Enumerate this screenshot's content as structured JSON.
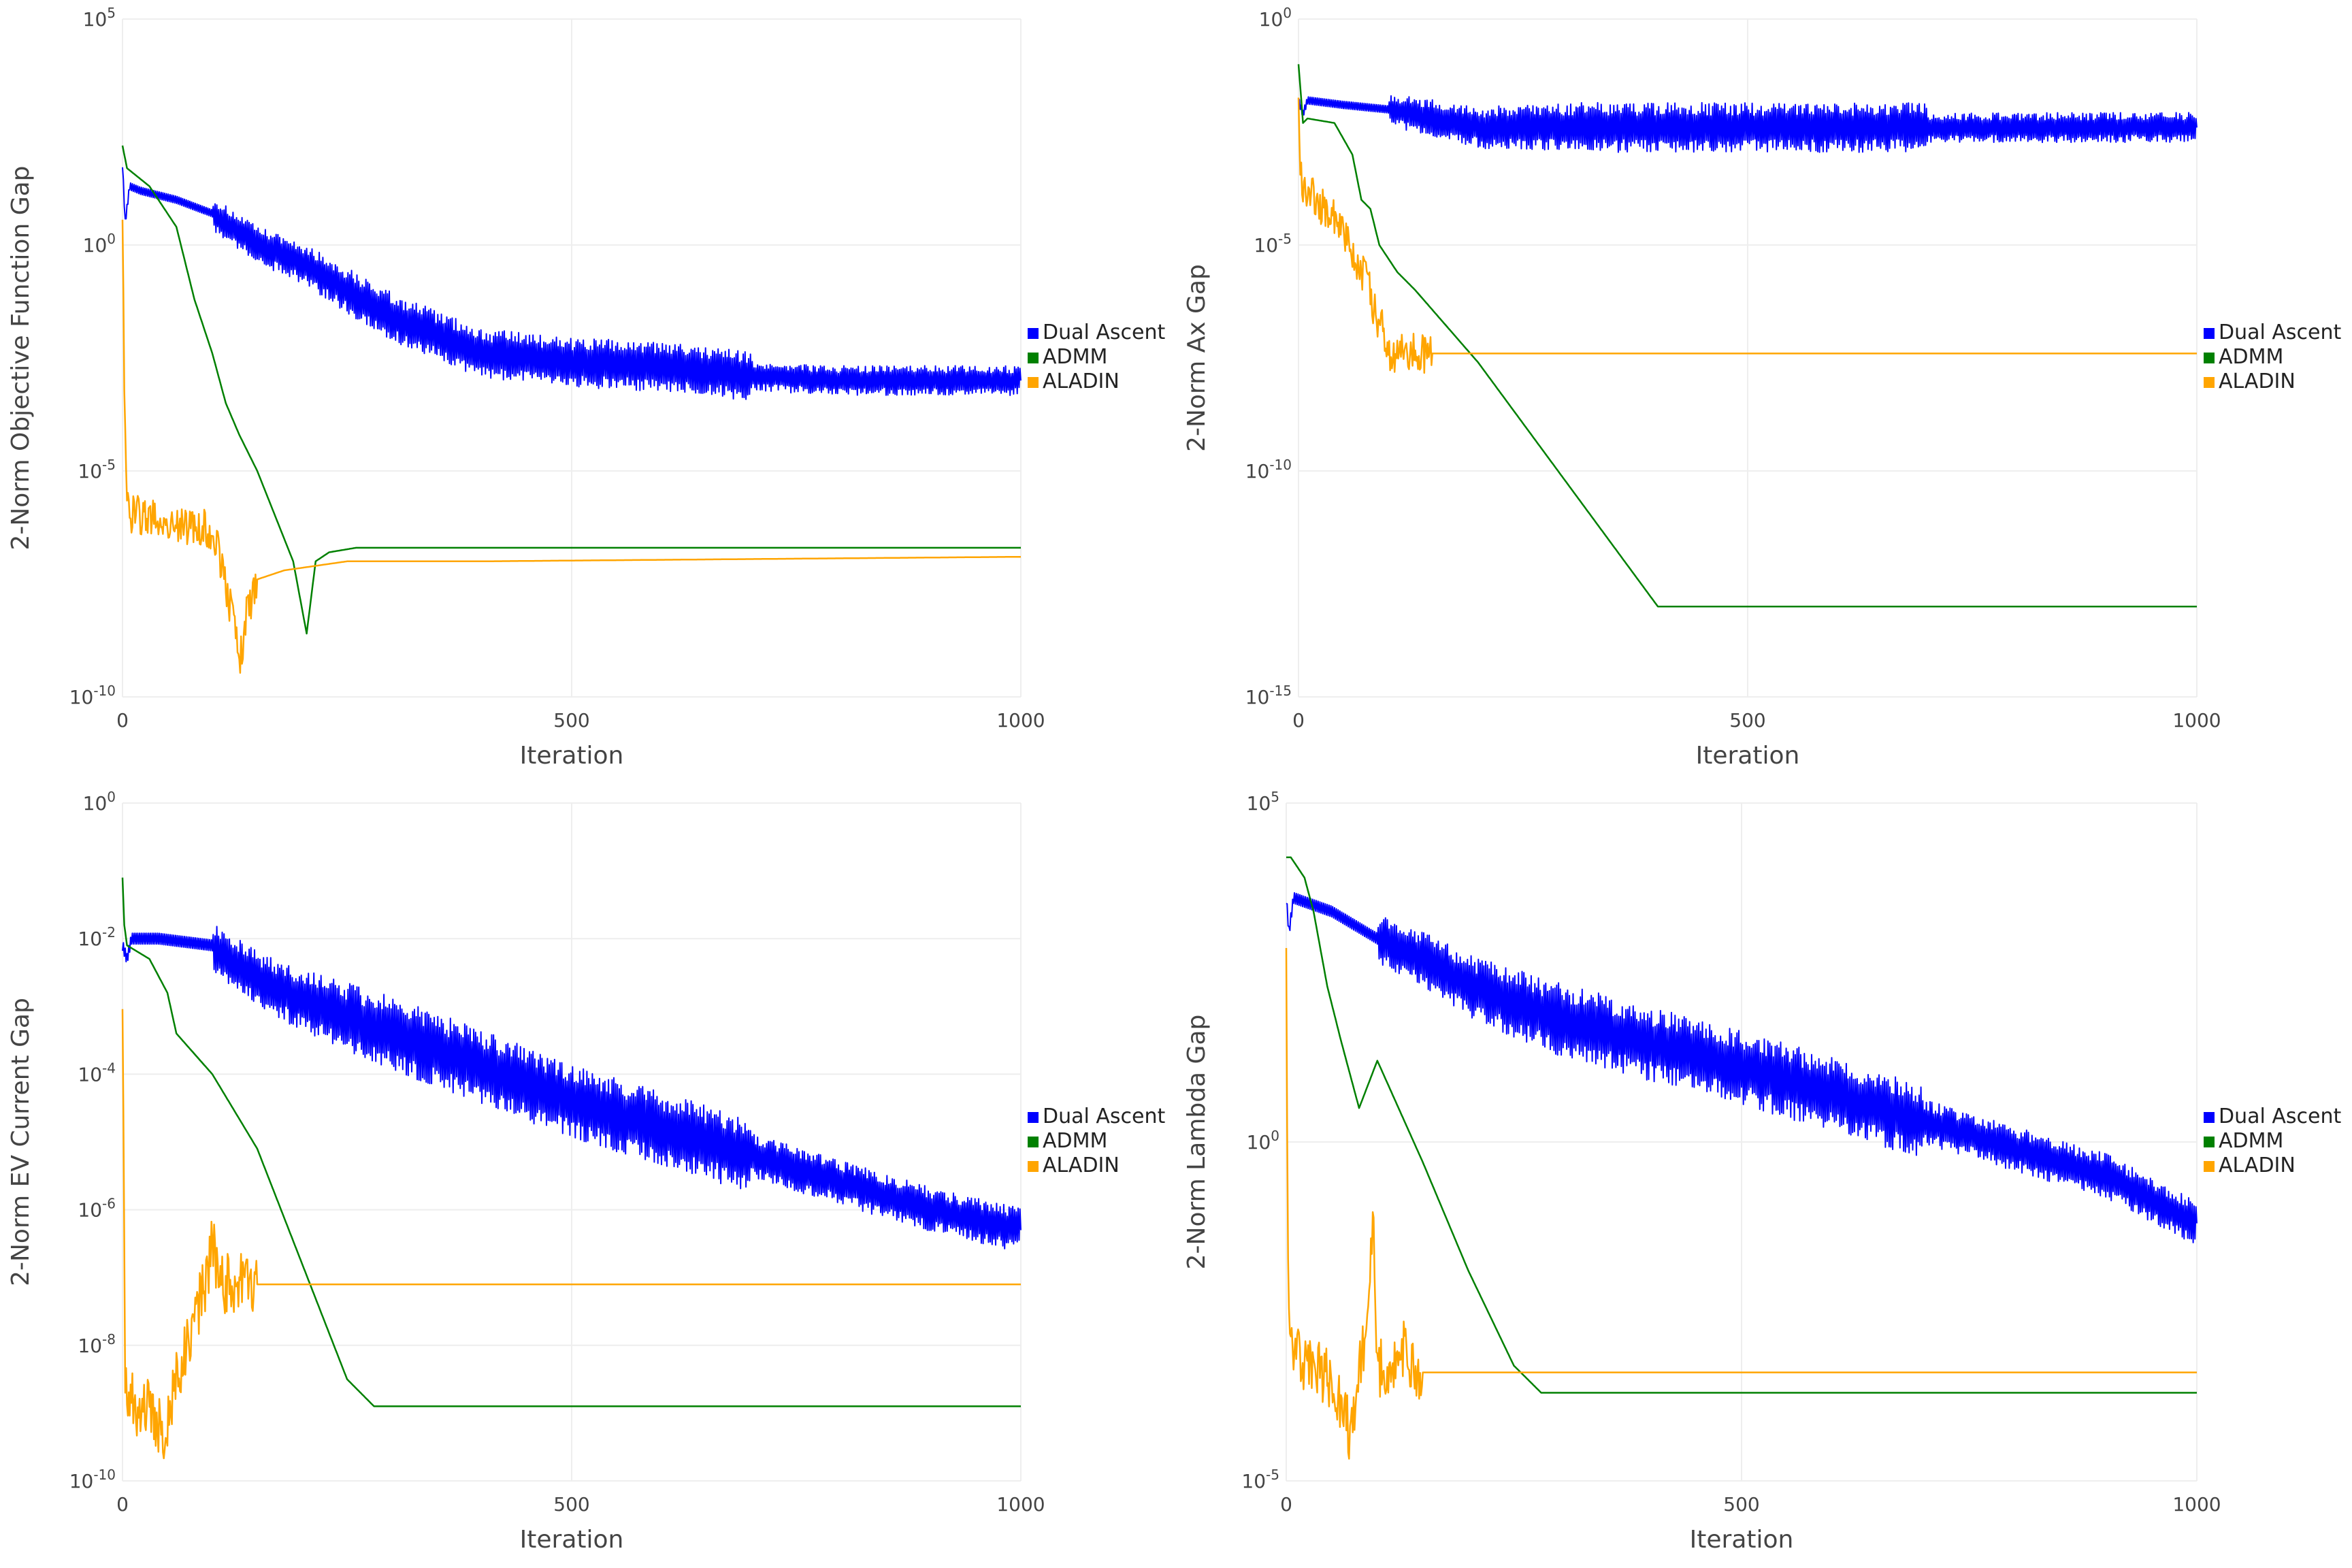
{
  "chart_data": [
    {
      "type": "line",
      "xlabel": "Iteration",
      "ylabel": "2-Norm Objective Function Gap",
      "x_range": [
        0,
        1000
      ],
      "x_ticks": [
        0,
        500,
        1000
      ],
      "y_scale": "log",
      "y_range_log10": [
        -10,
        5
      ],
      "y_tick_labels": [
        {
          "base": "10",
          "exp": "5",
          "log10": 5
        },
        {
          "base": "10",
          "exp": "0",
          "log10": 0
        },
        {
          "base": "10",
          "exp": "-5",
          "log10": -5
        },
        {
          "base": "10",
          "exp": "-10",
          "log10": -10
        }
      ],
      "grid": true,
      "legend_position": "right",
      "series": [
        {
          "name": "Dual Ascent",
          "color": "#0000ff",
          "oscillation": "strong",
          "x": [
            0,
            3,
            8,
            20,
            60,
            100,
            150,
            200,
            300,
            400,
            500,
            600,
            700,
            800,
            1000
          ],
          "log10_y": [
            1.8,
            0.5,
            1.3,
            1.2,
            1.0,
            0.7,
            0.0,
            -0.4,
            -1.6,
            -2.4,
            -2.6,
            -2.7,
            -2.9,
            -3.0,
            -3.0
          ]
        },
        {
          "name": "ADMM",
          "color": "#008000",
          "oscillation": "none",
          "x": [
            0,
            5,
            30,
            60,
            80,
            100,
            115,
            130,
            150,
            170,
            190,
            205,
            215,
            230,
            260,
            400,
            1000
          ],
          "log10_y": [
            2.2,
            1.7,
            1.3,
            0.4,
            -1.2,
            -2.4,
            -3.5,
            -4.2,
            -5.0,
            -6.0,
            -7.0,
            -8.6,
            -7.0,
            -6.8,
            -6.7,
            -6.7,
            -6.7
          ]
        },
        {
          "name": "ALADIN",
          "color": "#ffa500",
          "oscillation": "noisy",
          "x": [
            0,
            2,
            5,
            20,
            40,
            60,
            80,
            100,
            110,
            120,
            130,
            140,
            150,
            180,
            250,
            400,
            1000
          ],
          "log10_y": [
            1.0,
            -3.0,
            -5.9,
            -6.0,
            -6.1,
            -6.2,
            -6.3,
            -6.3,
            -7.0,
            -8.0,
            -9.2,
            -8.0,
            -7.4,
            -7.2,
            -7.0,
            -7.0,
            -6.9
          ]
        }
      ]
    },
    {
      "type": "line",
      "xlabel": "Iteration",
      "ylabel": "2-Norm Ax Gap",
      "x_range": [
        0,
        1000
      ],
      "x_ticks": [
        0,
        500,
        1000
      ],
      "y_scale": "log",
      "y_range_log10": [
        -15,
        0
      ],
      "y_tick_labels": [
        {
          "base": "10",
          "exp": "0",
          "log10": 0
        },
        {
          "base": "10",
          "exp": "-5",
          "log10": -5
        },
        {
          "base": "10",
          "exp": "-10",
          "log10": -10
        },
        {
          "base": "10",
          "exp": "-15",
          "log10": -15
        }
      ],
      "grid": true,
      "legend_position": "right",
      "series": [
        {
          "name": "Dual Ascent",
          "color": "#0000ff",
          "oscillation": "strong",
          "x": [
            0,
            5,
            10,
            50,
            100,
            150,
            200,
            300,
            500,
            1000
          ],
          "log10_y": [
            -1.8,
            -2.1,
            -1.8,
            -1.9,
            -2.0,
            -2.2,
            -2.4,
            -2.4,
            -2.4,
            -2.4
          ]
        },
        {
          "name": "ADMM",
          "color": "#008000",
          "oscillation": "none",
          "x": [
            0,
            2,
            5,
            10,
            40,
            60,
            70,
            80,
            90,
            100,
            110,
            130,
            200,
            300,
            400,
            1000
          ],
          "log10_y": [
            -1.0,
            -1.5,
            -2.3,
            -2.2,
            -2.3,
            -3.0,
            -4.0,
            -4.2,
            -5.0,
            -5.3,
            -5.6,
            -6.0,
            -7.6,
            -10.3,
            -13.0,
            -13.0
          ]
        },
        {
          "name": "ALADIN",
          "color": "#ffa500",
          "oscillation": "noisy",
          "x": [
            0,
            2,
            5,
            20,
            40,
            60,
            80,
            90,
            95,
            100,
            1000
          ],
          "log10_y": [
            -1.3,
            -3.5,
            -3.6,
            -4.0,
            -4.4,
            -5.2,
            -6.0,
            -7.0,
            -6.8,
            -7.4,
            -7.4
          ]
        }
      ]
    },
    {
      "type": "line",
      "xlabel": "Iteration",
      "ylabel": "2-Norm EV Current Gap",
      "x_range": [
        0,
        1000
      ],
      "x_ticks": [
        0,
        500,
        1000
      ],
      "y_scale": "log",
      "y_range_log10": [
        -10,
        0
      ],
      "y_tick_labels": [
        {
          "base": "10",
          "exp": "0",
          "log10": 0
        },
        {
          "base": "10",
          "exp": "-2",
          "log10": -2
        },
        {
          "base": "10",
          "exp": "-4",
          "log10": -4
        },
        {
          "base": "10",
          "exp": "-6",
          "log10": -6
        },
        {
          "base": "10",
          "exp": "-8",
          "log10": -8
        },
        {
          "base": "10",
          "exp": "-10",
          "log10": -10
        }
      ],
      "grid": true,
      "legend_position": "right",
      "series": [
        {
          "name": "Dual Ascent",
          "color": "#0000ff",
          "oscillation": "strong",
          "x": [
            0,
            5,
            10,
            40,
            100,
            150,
            200,
            300,
            500,
            700,
            900,
            1000
          ],
          "log10_y": [
            -2.1,
            -2.3,
            -2.0,
            -2.0,
            -2.1,
            -2.6,
            -2.9,
            -3.4,
            -4.4,
            -5.2,
            -6.0,
            -6.3
          ]
        },
        {
          "name": "ADMM",
          "color": "#008000",
          "oscillation": "none",
          "x": [
            0,
            2,
            5,
            30,
            50,
            60,
            100,
            150,
            200,
            250,
            280,
            300,
            1000
          ],
          "log10_y": [
            -1.1,
            -1.8,
            -2.1,
            -2.3,
            -2.8,
            -3.4,
            -4.0,
            -5.1,
            -6.8,
            -8.5,
            -8.9,
            -8.9,
            -8.9
          ]
        },
        {
          "name": "ALADIN",
          "color": "#ffa500",
          "oscillation": "noisy",
          "x": [
            0,
            1,
            3,
            15,
            30,
            45,
            60,
            75,
            90,
            100,
            110,
            1000
          ],
          "log10_y": [
            -2.6,
            -5.0,
            -8.6,
            -8.9,
            -8.8,
            -9.4,
            -8.5,
            -7.8,
            -7.2,
            -6.5,
            -7.1,
            -7.1
          ]
        }
      ]
    },
    {
      "type": "line",
      "xlabel": "Iteration",
      "ylabel": "2-Norm Lambda Gap",
      "x_range": [
        0,
        1000
      ],
      "x_ticks": [
        0,
        500,
        1000
      ],
      "y_scale": "log",
      "y_range_log10": [
        -5,
        5
      ],
      "y_tick_labels": [
        {
          "base": "10",
          "exp": "5",
          "log10": 5
        },
        {
          "base": "10",
          "exp": "0",
          "log10": 0
        },
        {
          "base": "10",
          "exp": "-5",
          "log10": -5
        }
      ],
      "grid": true,
      "legend_position": "right",
      "series": [
        {
          "name": "Dual Ascent",
          "color": "#0000ff",
          "oscillation": "strong",
          "x": [
            0,
            3,
            8,
            50,
            100,
            150,
            200,
            300,
            500,
            700,
            900,
            1000
          ],
          "log10_y": [
            3.6,
            3.1,
            3.6,
            3.4,
            3.0,
            2.7,
            2.3,
            1.8,
            1.1,
            0.3,
            -0.5,
            -1.2
          ]
        },
        {
          "name": "ADMM",
          "color": "#008000",
          "oscillation": "none",
          "x": [
            0,
            5,
            20,
            30,
            45,
            60,
            80,
            100,
            150,
            200,
            250,
            280,
            300,
            1000
          ],
          "log10_y": [
            4.2,
            4.2,
            3.9,
            3.4,
            2.3,
            1.5,
            0.5,
            1.2,
            -0.3,
            -1.9,
            -3.3,
            -3.7,
            -3.7,
            -3.7
          ]
        },
        {
          "name": "ALADIN",
          "color": "#ffa500",
          "oscillation": "noisy",
          "x": [
            0,
            1,
            3,
            20,
            50,
            70,
            85,
            95,
            100,
            120,
            130,
            140,
            1000
          ],
          "log10_y": [
            3.3,
            0.0,
            -2.8,
            -3.3,
            -3.5,
            -4.3,
            -3.0,
            -1.1,
            -3.3,
            -3.4,
            -3.0,
            -3.4,
            -3.4
          ]
        }
      ]
    }
  ]
}
